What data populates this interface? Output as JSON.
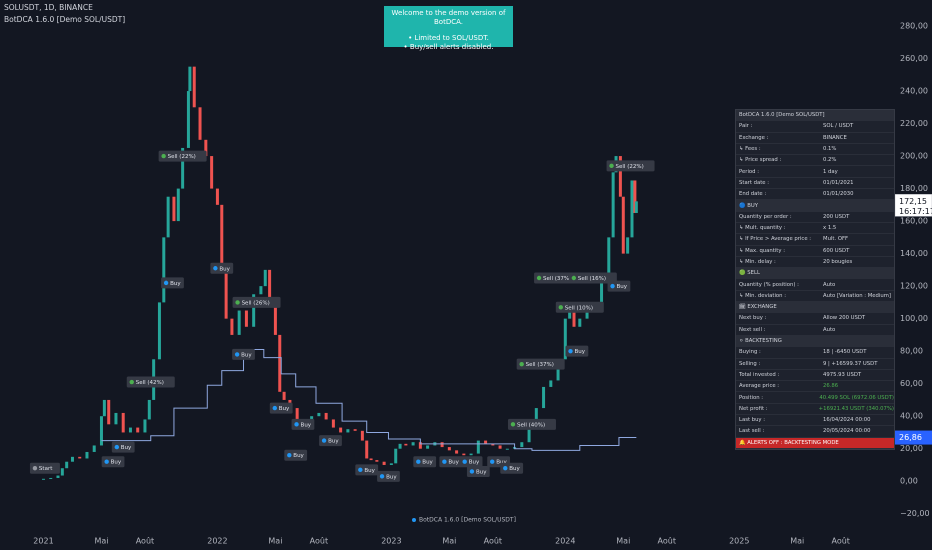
{
  "chart_data": {
    "type": "candles",
    "title": "SOLUSDT, 1D, BINANCE",
    "subtitle": "BotDCA 1.6.0 [Demo SOL/USDT]",
    "footer": "BotDCA 1.6.0 [Demo SOL/USDT]",
    "up_color": "#26a69a",
    "down_color": "#ef5350",
    "xlim": [
      -3,
      58.4
    ],
    "xticks": [
      {
        "value": 0,
        "label": "2021"
      },
      {
        "value": 4,
        "label": "Mai"
      },
      {
        "value": 7,
        "label": "Août"
      },
      {
        "value": 12,
        "label": "2022"
      },
      {
        "value": 16,
        "label": "Mai"
      },
      {
        "value": 19,
        "label": "Août"
      },
      {
        "value": 24,
        "label": "2023"
      },
      {
        "value": 28,
        "label": "Mai"
      },
      {
        "value": 31,
        "label": "Août"
      },
      {
        "value": 36,
        "label": "2024"
      },
      {
        "value": 40,
        "label": "Mai"
      },
      {
        "value": 43,
        "label": "Août"
      },
      {
        "value": 48,
        "label": "2025"
      },
      {
        "value": 52,
        "label": "Mai"
      },
      {
        "value": 55,
        "label": "Août"
      }
    ],
    "ylim": [
      -30,
      296
    ],
    "yticks": [
      {
        "value": 280,
        "label": "280,00"
      },
      {
        "value": 260,
        "label": "260,00"
      },
      {
        "value": 240,
        "label": "240,00"
      },
      {
        "value": 220,
        "label": "220,00"
      },
      {
        "value": 200,
        "label": "200,00"
      },
      {
        "value": 180,
        "label": "180,00"
      },
      {
        "value": 160,
        "label": "160,00"
      },
      {
        "value": 140,
        "label": "140,00"
      },
      {
        "value": 120,
        "label": "120,00"
      },
      {
        "value": 100,
        "label": "100,00"
      },
      {
        "value": 80,
        "label": "80,00"
      },
      {
        "value": 60,
        "label": "60,00"
      },
      {
        "value": 40,
        "label": "40,00"
      },
      {
        "value": 20,
        "label": "20,00"
      },
      {
        "value": 0,
        "label": "0,00"
      },
      {
        "value": -20,
        "label": "−20,00"
      }
    ],
    "price": {
      "x": [
        0,
        0.5,
        1,
        1.3,
        1.6,
        2,
        2.5,
        3,
        3.5,
        4,
        4.2,
        4.5,
        5,
        5.5,
        6,
        6.5,
        7,
        7.3,
        7.6,
        8,
        8.3,
        8.6,
        9,
        9.3,
        9.6,
        10,
        10.1,
        10.4,
        10.8,
        11.2,
        11.6,
        12,
        12.3,
        12.6,
        13,
        13.5,
        14,
        14.5,
        15,
        15.3,
        15.6,
        16,
        16.3,
        16.6,
        17,
        17.5,
        18,
        18.5,
        19,
        19.5,
        20,
        20.5,
        21,
        21.5,
        22,
        22.3,
        22.6,
        23,
        23.5,
        24,
        24.3,
        24.6,
        25,
        25.5,
        26,
        26.5,
        27,
        27.5,
        28,
        28.5,
        29,
        29.5,
        30,
        30.5,
        31,
        31.5,
        32,
        32.5,
        33,
        33.5,
        34,
        34.5,
        35,
        35.5,
        36,
        36.3,
        36.6,
        37,
        37.5,
        38,
        38.5,
        39,
        39.3,
        39.5,
        39.8,
        40,
        40.3,
        40.6,
        40.8,
        40.9
      ],
      "values": [
        1.5,
        2,
        3.5,
        8,
        12,
        15,
        14,
        18,
        22,
        40,
        50,
        35,
        42,
        30,
        33,
        30,
        38,
        50,
        75,
        110,
        150,
        175,
        160,
        180,
        205,
        240,
        255,
        230,
        210,
        200,
        180,
        170,
        130,
        100,
        90,
        105,
        95,
        115,
        120,
        130,
        110,
        90,
        55,
        50,
        45,
        35,
        38,
        40,
        42,
        38,
        33,
        30,
        32,
        31,
        25,
        14,
        13,
        12,
        10,
        11,
        20,
        23,
        22,
        24,
        20,
        22,
        24,
        21,
        19,
        17,
        16,
        17,
        25,
        23,
        22,
        20,
        20,
        21,
        24,
        33,
        45,
        58,
        62,
        75,
        100,
        110,
        95,
        100,
        110,
        105,
        125,
        150,
        190,
        200,
        175,
        140,
        150,
        185,
        165,
        172.15
      ]
    },
    "average": {
      "color": "#8fa8e0",
      "x": [
        4,
        7.4,
        7.4,
        9,
        9,
        11.3,
        11.3,
        12.3,
        12.3,
        13.8,
        13.8,
        15.2,
        15.2,
        16.4,
        16.4,
        17.4,
        17.4,
        18.8,
        18.8,
        20.6,
        20.6,
        22.3,
        22.3,
        23.8,
        23.8,
        26,
        26,
        32.5,
        32.5,
        33.7,
        33.7,
        37,
        37,
        39.7,
        39.7,
        40.9
      ],
      "values": [
        25,
        25,
        28,
        28,
        45,
        45,
        59,
        59,
        68,
        68,
        81,
        81,
        76,
        76,
        66,
        66,
        58,
        58,
        48,
        48,
        37,
        37,
        30,
        30,
        26,
        26,
        23,
        23,
        20,
        20,
        19,
        19,
        22,
        22,
        26.86,
        26.86
      ]
    },
    "markers": [
      {
        "value": 172.15,
        "label": "172,15",
        "time": "16:17:17",
        "color": "#ffffff"
      },
      {
        "value": 26.86,
        "label": "26,86",
        "color": "#2962ff"
      }
    ],
    "signals": [
      {
        "label": "Start",
        "x": 0.1,
        "y": 8,
        "color": "#9598a1"
      },
      {
        "label": "Buy",
        "x": 5.5,
        "y": 21,
        "color": "#2196f3"
      },
      {
        "label": "Buy",
        "x": 4.8,
        "y": 12,
        "color": "#2196f3"
      },
      {
        "label": "Sell (42%)",
        "x": 7.4,
        "y": 61,
        "color": "#4caf50"
      },
      {
        "label": "Sell (22%)",
        "x": 9.6,
        "y": 200,
        "color": "#4caf50"
      },
      {
        "label": "Buy",
        "x": 12.3,
        "y": 131,
        "color": "#2196f3"
      },
      {
        "label": "Buy",
        "x": 8.9,
        "y": 122,
        "color": "#2196f3"
      },
      {
        "label": "Sell (26%)",
        "x": 14.7,
        "y": 110,
        "color": "#4caf50"
      },
      {
        "label": "Buy",
        "x": 13.8,
        "y": 78,
        "color": "#2196f3"
      },
      {
        "label": "Buy",
        "x": 16.4,
        "y": 45,
        "color": "#2196f3"
      },
      {
        "label": "Buy",
        "x": 17.9,
        "y": 35,
        "color": "#2196f3"
      },
      {
        "label": "Buy",
        "x": 19.8,
        "y": 25,
        "color": "#2196f3"
      },
      {
        "label": "Buy",
        "x": 17.4,
        "y": 16,
        "color": "#2196f3"
      },
      {
        "label": "Buy",
        "x": 22.3,
        "y": 7,
        "color": "#2196f3"
      },
      {
        "label": "Buy",
        "x": 23.8,
        "y": 3,
        "color": "#2196f3"
      },
      {
        "label": "Buy",
        "x": 26.3,
        "y": 12,
        "color": "#2196f3"
      },
      {
        "label": "Buy",
        "x": 28.1,
        "y": 12,
        "color": "#2196f3"
      },
      {
        "label": "Buy",
        "x": 29.5,
        "y": 12,
        "color": "#2196f3"
      },
      {
        "label": "Buy",
        "x": 30,
        "y": 6,
        "color": "#2196f3"
      },
      {
        "label": "Buy",
        "x": 31.4,
        "y": 12,
        "color": "#2196f3"
      },
      {
        "label": "Buy",
        "x": 32.3,
        "y": 8,
        "color": "#2196f3"
      },
      {
        "label": "Sell (40%)",
        "x": 33.7,
        "y": 35,
        "color": "#4caf50"
      },
      {
        "label": "Sell (37%)",
        "x": 34.3,
        "y": 72,
        "color": "#4caf50"
      },
      {
        "label": "Buy",
        "x": 36.8,
        "y": 80,
        "color": "#2196f3"
      },
      {
        "label": "Sell (37%)",
        "x": 35.5,
        "y": 125,
        "color": "#4caf50"
      },
      {
        "label": "Sell (10%)",
        "x": 37,
        "y": 107,
        "color": "#4caf50"
      },
      {
        "label": "Sell (16%)",
        "x": 37.9,
        "y": 125,
        "color": "#4caf50"
      },
      {
        "label": "Buy",
        "x": 39.7,
        "y": 120,
        "color": "#2196f3"
      },
      {
        "label": "Sell (22%)",
        "x": 40.5,
        "y": 194,
        "color": "#4caf50"
      }
    ]
  },
  "banner": {
    "lines": [
      "Welcome to the demo version of BotDCA.",
      "• Limited to SOL/USDT.",
      "• Buy/sell alerts disabled."
    ]
  },
  "panel": {
    "title": "BotDCA 1.6.0 [Demo SOL/USDT]",
    "rows": [
      {
        "label": "Pair :",
        "value": "SOL / USDT"
      },
      {
        "label": "Exchange :",
        "value": "BINANCE"
      },
      {
        "label": "↳ Fees :",
        "value": "0.1%"
      },
      {
        "label": "↳ Price spread :",
        "value": "0.2%"
      },
      {
        "label": "Period :",
        "value": "1 day"
      },
      {
        "label": "Start date :",
        "value": "01/01/2021"
      },
      {
        "label": "End date :",
        "value": "01/01/2030"
      },
      {
        "section": "🔵 BUY"
      },
      {
        "label": "Quantity per order :",
        "value": "200 USDT"
      },
      {
        "label": "↳ Mult. quantity :",
        "value": "x 1.5"
      },
      {
        "label": "  ↳ If Price > Average price :",
        "value": "Mult. OFF"
      },
      {
        "label": "  ↳ Max. quantity :",
        "value": "600 USDT"
      },
      {
        "label": "↳ Min. delay :",
        "value": "20 bougies"
      },
      {
        "section": "🟢 SELL"
      },
      {
        "label": "Quantity (% position) :",
        "value": "Auto"
      },
      {
        "label": "↳ Min. deviation :",
        "value": "Auto [Variation : Medium]"
      },
      {
        "section": "🗓 EXCHANGE"
      },
      {
        "label": "Next buy :",
        "value": "Allow 200 USDT"
      },
      {
        "label": "Next sell :",
        "value": "Auto"
      },
      {
        "section": "⚪ BACKTESTING"
      },
      {
        "label": "Buying :",
        "value": "18 | -6450 USDT"
      },
      {
        "label": "Selling :",
        "value": "9 | +16599.37 USDT"
      },
      {
        "label": "Total invested :",
        "value": "4975.93 USDT"
      },
      {
        "label": "Average price :",
        "value": "26.86",
        "color": "#4caf50"
      },
      {
        "label": "Position :",
        "value": "40.499 SOL (6972.06 USDT)",
        "color": "#4caf50"
      },
      {
        "label": "Net profit :",
        "value": "+16921.43 USDT (340.07%)",
        "color": "#4caf50"
      },
      {
        "label": "Last buy :",
        "value": "16/04/2024 00:00"
      },
      {
        "label": "Last sell :",
        "value": "20/05/2024 00:00"
      }
    ],
    "alert": "🔔 ALERTS OFF : BACKTESTING MODE"
  }
}
